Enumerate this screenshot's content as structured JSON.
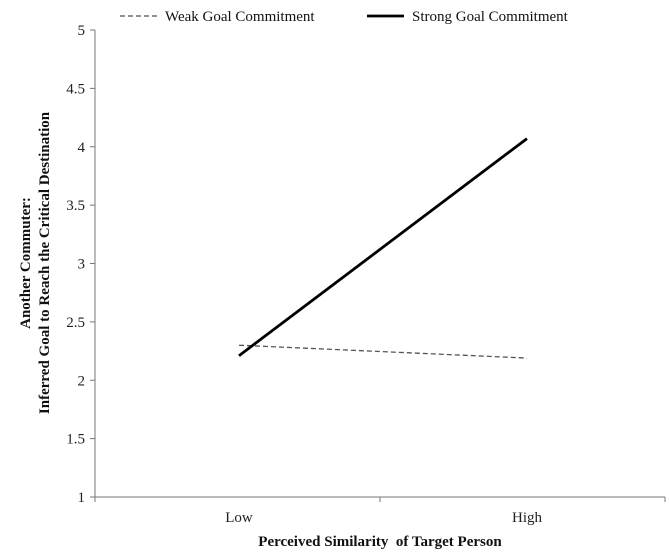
{
  "chart_data": {
    "type": "line",
    "categories": [
      "Low",
      "High"
    ],
    "series": [
      {
        "name": "Weak Goal Commitment",
        "values": [
          2.3,
          2.19
        ],
        "color": "#555555",
        "style": "dashed"
      },
      {
        "name": "Strong Goal Commitment",
        "values": [
          2.21,
          4.07
        ],
        "color": "#000000",
        "style": "solid"
      }
    ],
    "xlabel": "Perceived Similarity  of Target Person",
    "ylabel": [
      "Another Commuter:",
      "Inferred Goal to Reach the Critical Destination"
    ],
    "ylim": [
      1,
      5
    ],
    "yticks": [
      1,
      1.5,
      2,
      2.5,
      3,
      3.5,
      4,
      4.5,
      5
    ],
    "grid": false,
    "legend_position": "top"
  }
}
